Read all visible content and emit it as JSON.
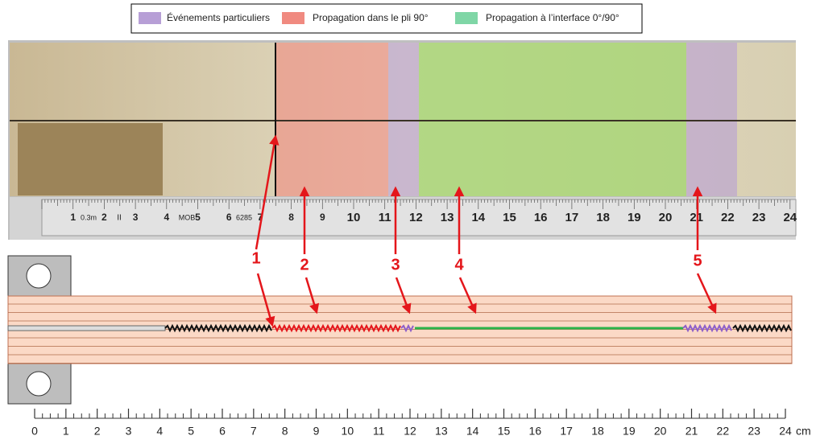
{
  "legend": [
    {
      "label": "Événements particuliers",
      "color": "#b79fd6"
    },
    {
      "label": "Propagation dans le pli 90°",
      "color": "#f08a80"
    },
    {
      "label": "Propagation à l’interface 0°/90°",
      "color": "#7fd6a6"
    }
  ],
  "callouts": [
    "1",
    "2",
    "3",
    "4",
    "5"
  ],
  "photo_ruler": {
    "labels": [
      "1",
      "2",
      "3",
      "4",
      "5",
      "6",
      "7",
      "8",
      "9",
      "10",
      "11",
      "12",
      "13",
      "14",
      "15",
      "16",
      "17",
      "18",
      "19",
      "20",
      "21",
      "22",
      "23",
      "24"
    ],
    "marks": [
      "0.3m",
      "II",
      "MOB",
      "6285"
    ]
  },
  "scale": {
    "ticks": [
      0,
      1,
      2,
      3,
      4,
      5,
      6,
      7,
      8,
      9,
      10,
      11,
      12,
      13,
      14,
      15,
      16,
      17,
      18,
      19,
      20,
      21,
      22,
      23,
      24
    ],
    "unit": "cm"
  }
}
